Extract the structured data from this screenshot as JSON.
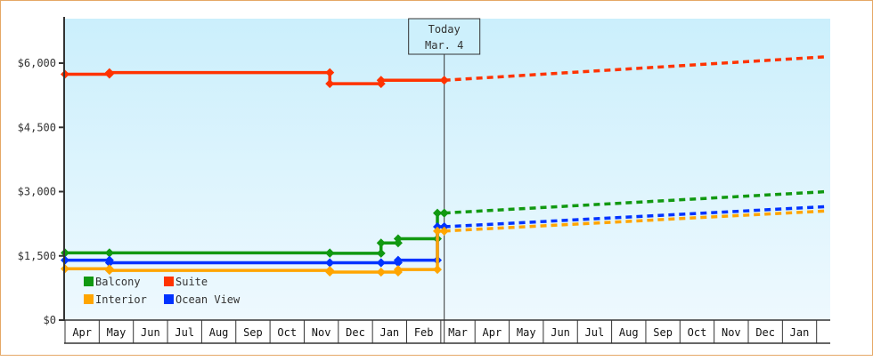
{
  "chart_data": {
    "type": "line",
    "title": "",
    "xlabel": "",
    "ylabel": "",
    "ylim": [
      0,
      7000
    ],
    "y_ticks": [
      {
        "value": 0,
        "label": "$0"
      },
      {
        "value": 1500,
        "label": "$1,500"
      },
      {
        "value": 3000,
        "label": "$3,000"
      },
      {
        "value": 4500,
        "label": "$4,500"
      },
      {
        "value": 6000,
        "label": "$6,000"
      }
    ],
    "categories": [
      "Apr",
      "May",
      "Jun",
      "Jul",
      "Aug",
      "Sep",
      "Oct",
      "Nov",
      "Dec",
      "Jan",
      "Feb",
      "Mar",
      "Apr",
      "May",
      "Jun",
      "Jul",
      "Aug",
      "Sep",
      "Oct",
      "Nov",
      "Dec",
      "Jan"
    ],
    "today_marker": {
      "line1": "Today",
      "line2": "Mar. 4",
      "x_month_index": 11.1
    },
    "legend": [
      {
        "name": "Balcony",
        "color": "#119911"
      },
      {
        "name": "Suite",
        "color": "#ff3300"
      },
      {
        "name": "Interior",
        "color": "#ffa500"
      },
      {
        "name": "Ocean View",
        "color": "#0033ff"
      }
    ],
    "series": [
      {
        "name": "Suite",
        "color": "#ff3300",
        "historical_step": [
          {
            "m": 0.0,
            "v": 5740
          },
          {
            "m": 1.3,
            "v": 5780
          },
          {
            "m": 7.75,
            "v": 5520
          },
          {
            "m": 9.25,
            "v": 5600
          },
          {
            "m": 11.1,
            "v": 5600
          }
        ],
        "projected": [
          {
            "m": 11.1,
            "v": 5600
          },
          {
            "m": 22.3,
            "v": 6150
          }
        ]
      },
      {
        "name": "Balcony",
        "color": "#119911",
        "historical_step": [
          {
            "m": 0.0,
            "v": 1570
          },
          {
            "m": 1.3,
            "v": 1570
          },
          {
            "m": 7.75,
            "v": 1560
          },
          {
            "m": 9.25,
            "v": 1800
          },
          {
            "m": 9.75,
            "v": 1900
          },
          {
            "m": 10.9,
            "v": 2500
          },
          {
            "m": 11.1,
            "v": 2500
          }
        ],
        "projected": [
          {
            "m": 11.1,
            "v": 2500
          },
          {
            "m": 22.3,
            "v": 3000
          }
        ]
      },
      {
        "name": "Ocean View",
        "color": "#0033ff",
        "historical_step": [
          {
            "m": 0.0,
            "v": 1400
          },
          {
            "m": 1.3,
            "v": 1340
          },
          {
            "m": 7.75,
            "v": 1340
          },
          {
            "m": 9.25,
            "v": 1340
          },
          {
            "m": 9.75,
            "v": 1400
          },
          {
            "m": 10.9,
            "v": 2180
          },
          {
            "m": 11.1,
            "v": 2180
          }
        ],
        "projected": [
          {
            "m": 11.1,
            "v": 2180
          },
          {
            "m": 22.3,
            "v": 2650
          }
        ]
      },
      {
        "name": "Interior",
        "color": "#ffa500",
        "historical_step": [
          {
            "m": 0.0,
            "v": 1200
          },
          {
            "m": 1.3,
            "v": 1160
          },
          {
            "m": 7.75,
            "v": 1120
          },
          {
            "m": 9.25,
            "v": 1120
          },
          {
            "m": 9.75,
            "v": 1180
          },
          {
            "m": 10.9,
            "v": 2080
          },
          {
            "m": 11.1,
            "v": 2080
          }
        ],
        "projected": [
          {
            "m": 11.1,
            "v": 2080
          },
          {
            "m": 22.3,
            "v": 2550
          }
        ]
      }
    ]
  }
}
